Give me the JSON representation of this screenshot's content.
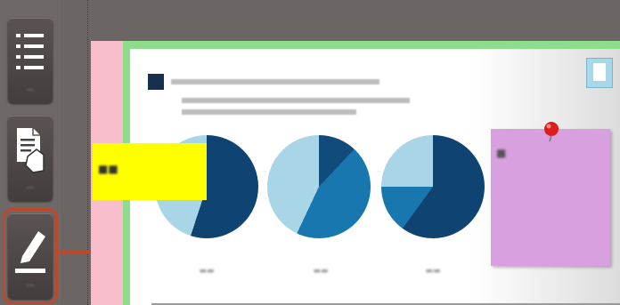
{
  "toolbar": {
    "items": [
      {
        "label": "···",
        "icon": "list-icon"
      },
      {
        "label": "···",
        "icon": "document-hand-icon"
      },
      {
        "label": "···",
        "icon": "highlighter-icon",
        "active": true
      }
    ]
  },
  "document": {
    "title": "",
    "sticky_yellow": "■■",
    "sticky_purple": "■"
  },
  "chart_data": [
    {
      "type": "pie",
      "values": [
        55,
        45
      ],
      "colors": [
        "#0f4472",
        "#a9d6e6"
      ]
    },
    {
      "type": "pie",
      "values": [
        12,
        45,
        43
      ],
      "colors": [
        "#114b7b",
        "#1777ae",
        "#a9d6e6"
      ]
    },
    {
      "type": "pie",
      "values": [
        60,
        15,
        25
      ],
      "colors": [
        "#0f4472",
        "#1777ae",
        "#a9d6e6"
      ]
    }
  ],
  "colors": {
    "accent_callout": "#c0472a",
    "sticky_yellow": "#ffff00",
    "sticky_purple": "#d9a0e0",
    "frame_green": "#8fdc8d",
    "strip_pink": "#f6bfcb"
  }
}
